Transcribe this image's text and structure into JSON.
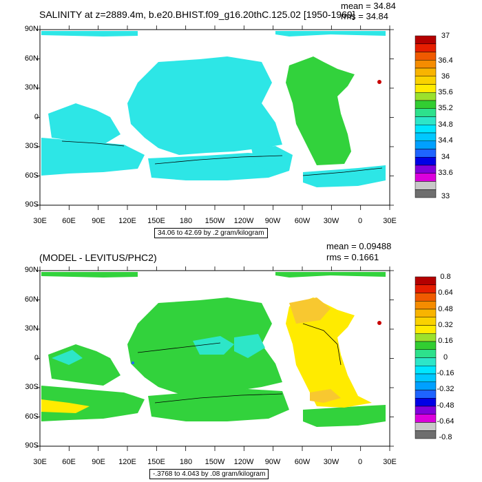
{
  "panels": [
    {
      "title": "SALINITY at z=2889.4m, b.e20.BHIST.f09_g16.20thC.125.02 [1950-1969]",
      "mean_label": "mean = 34.84",
      "rms_label": "rms = 34.84",
      "lat_labels": [
        "90N",
        "60N",
        "30N",
        "0",
        "30S",
        "60S",
        "90S"
      ],
      "lon_labels": [
        "30E",
        "60E",
        "90E",
        "120E",
        "150E",
        "180",
        "150W",
        "120W",
        "90W",
        "60W",
        "30W",
        "0",
        "30E"
      ],
      "footer": "34.06 to 42.69 by .2 gram/kilogram",
      "colorbar_labels": [
        "37",
        "36.4",
        "36",
        "35.6",
        "35.2",
        "34.8",
        "34.4",
        "34",
        "33.6",
        "33"
      ],
      "colorbar_colors": [
        "#b40000",
        "#e61e00",
        "#f05a00",
        "#f58c00",
        "#f8b400",
        "#fad200",
        "#ffeb00",
        "#9be12d",
        "#32cd32",
        "#2de18c",
        "#2de6c8",
        "#00e6ff",
        "#00c8ff",
        "#00a0ff",
        "#1e64ff",
        "#0000e6",
        "#8200dc",
        "#dc00dc",
        "#c8c8c8",
        "#6e6e6e"
      ],
      "field_colors": {
        "main": "#2de6e6",
        "secondary": "#32d23c",
        "tertiary": "#00dcdc",
        "spot": "#c80000"
      }
    },
    {
      "title": "(MODEL - LEVITUS/PHC2)",
      "mean_label": "mean = 0.09488",
      "rms_label": "rms = 0.1661",
      "lat_labels": [
        "90N",
        "60N",
        "30N",
        "0",
        "30S",
        "60S",
        "90S"
      ],
      "lon_labels": [
        "30E",
        "60E",
        "90E",
        "120E",
        "150E",
        "180",
        "150W",
        "120W",
        "90W",
        "60W",
        "30W",
        "0",
        "30E"
      ],
      "footer": "-.3768 to 4.043 by .08 gram/kilogram",
      "colorbar_labels": [
        "0.8",
        "0.64",
        "0.48",
        "0.32",
        "0.16",
        "0",
        "-0.16",
        "-0.32",
        "-0.48",
        "-0.64",
        "-0.8"
      ],
      "colorbar_colors": [
        "#b40000",
        "#e61e00",
        "#f05a00",
        "#f58c00",
        "#f8b400",
        "#fad200",
        "#ffeb00",
        "#9be12d",
        "#32cd32",
        "#2de18c",
        "#2de6c8",
        "#00e6ff",
        "#00c8ff",
        "#00a0ff",
        "#1e64ff",
        "#0000e6",
        "#8200dc",
        "#dc00dc",
        "#c8c8c8",
        "#6e6e6e"
      ],
      "field_colors": {
        "main": "#32d23c",
        "secondary": "#ffeb00",
        "tertiary": "#2de6c8",
        "spot": "#c80000",
        "warm": "#f8c830"
      }
    }
  ]
}
